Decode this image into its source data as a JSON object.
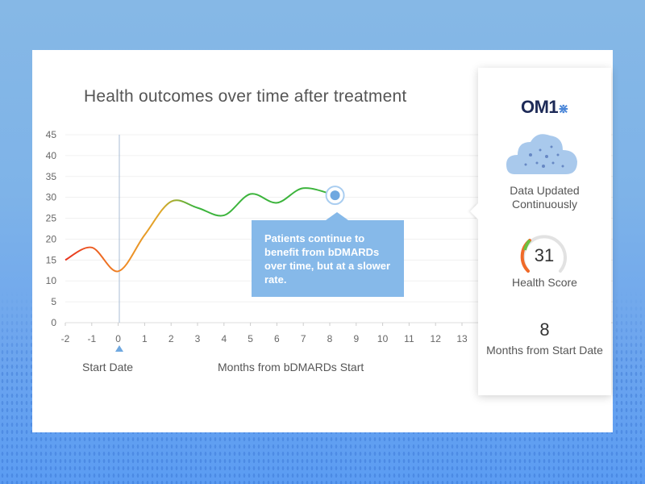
{
  "chart_data": {
    "type": "line",
    "title": "Health outcomes over time after treatment",
    "xlabel": "Months from bDMARDs Start",
    "marker_label": "Start Date",
    "x_ticks": [
      -2,
      -1,
      0,
      1,
      2,
      3,
      4,
      5,
      6,
      7,
      8,
      9,
      10,
      11,
      12,
      13
    ],
    "y_ticks": [
      0,
      5,
      10,
      15,
      20,
      25,
      30,
      35,
      40,
      45
    ],
    "xlim": [
      -2,
      13
    ],
    "ylim": [
      0,
      45
    ],
    "grid": true,
    "x": [
      -2,
      -1,
      0,
      1,
      2,
      3,
      4,
      5,
      6,
      7,
      8.2
    ],
    "y": [
      15,
      18,
      12.3,
      21,
      29,
      27.5,
      25.7,
      30.8,
      28.7,
      32.2,
      30.5
    ],
    "highlight_point": {
      "x": 8.2,
      "y": 30.5
    },
    "colors": {
      "low": "#e8321e",
      "mid": "#f0a22a",
      "high": "#3cb43c",
      "marker": "#6fa8e0"
    },
    "annotation": "Patients continue to benefit from bDMARDs over time, but at a slower rate."
  },
  "panel": {
    "logo": "OM1",
    "data_label": "Data Updated Continuously",
    "score": "31",
    "score_label": "Health Score",
    "months": "8",
    "months_label": "Months from Start Date"
  }
}
